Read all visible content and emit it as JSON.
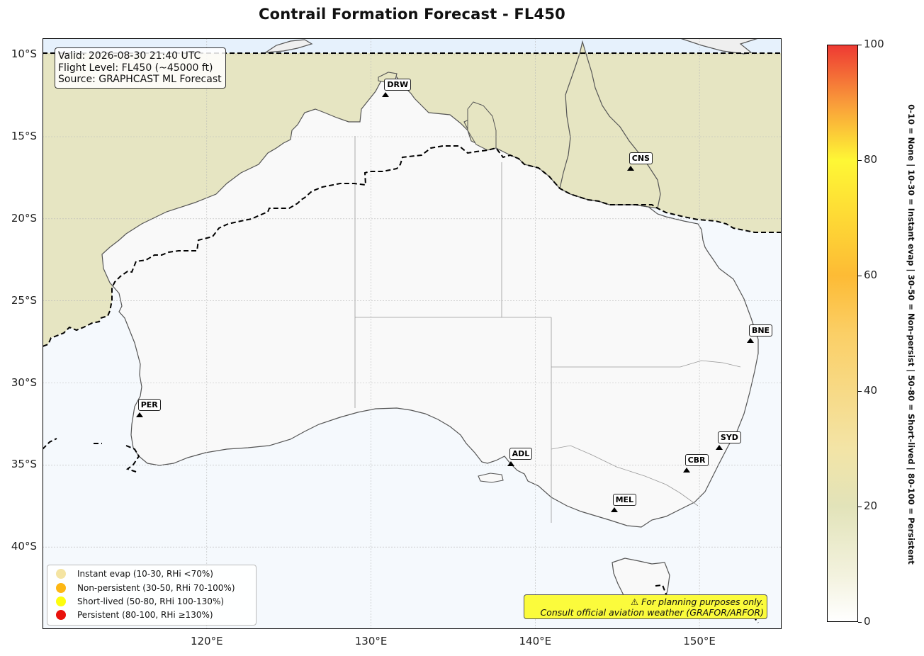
{
  "title": "Contrail Formation Forecast - FL450",
  "info": {
    "valid": "Valid: 2026-08-30 21:40 UTC",
    "flight_level": "Flight Level: FL450 (~45000 ft)",
    "source": "Source: GRAPHCAST ML Forecast"
  },
  "axes": {
    "lat_ticks": [
      {
        "value": -10,
        "label": "10°S"
      },
      {
        "value": -15,
        "label": "15°S"
      },
      {
        "value": -20,
        "label": "20°S"
      },
      {
        "value": -25,
        "label": "25°S"
      },
      {
        "value": -30,
        "label": "30°S"
      },
      {
        "value": -35,
        "label": "35°S"
      },
      {
        "value": -40,
        "label": "40°S"
      }
    ],
    "lon_ticks": [
      {
        "value": 120,
        "label": "120°E"
      },
      {
        "value": 130,
        "label": "130°E"
      },
      {
        "value": 140,
        "label": "140°E"
      },
      {
        "value": 150,
        "label": "150°E"
      }
    ],
    "extent": {
      "lon_min": 110,
      "lon_max": 155,
      "lat_min": -45,
      "lat_max": -9
    }
  },
  "airports": [
    {
      "code": "DRW",
      "lon": 130.9,
      "lat": -12.4
    },
    {
      "code": "CNS",
      "lon": 145.8,
      "lat": -16.9
    },
    {
      "code": "BNE",
      "lon": 153.1,
      "lat": -27.4
    },
    {
      "code": "PER",
      "lon": 115.9,
      "lat": -31.9
    },
    {
      "code": "SYD",
      "lon": 151.2,
      "lat": -33.9
    },
    {
      "code": "ADL",
      "lon": 138.5,
      "lat": -34.9
    },
    {
      "code": "CBR",
      "lon": 149.2,
      "lat": -35.3
    },
    {
      "code": "MEL",
      "lon": 144.8,
      "lat": -37.7
    }
  ],
  "legend": [
    {
      "label": "Instant evap (10-30, RHi <70%)",
      "color": "#f4e4a2"
    },
    {
      "label": "Non-persistent (30-50, RHi 70-100%)",
      "color": "#fdb714"
    },
    {
      "label": "Short-lived (50-80, RHi 100-130%)",
      "color": "#fdfd0f"
    },
    {
      "label": "Persistent (80-100, RHi ≥130%)",
      "color": "#e8120c"
    }
  ],
  "disclaimer": {
    "line1": "⚠ For planning purposes only.",
    "line2": "Consult official aviation weather (GRAFOR/ARFOR)"
  },
  "colorbar": {
    "ticks": [
      {
        "value": 0,
        "label": "0"
      },
      {
        "value": 20,
        "label": "20"
      },
      {
        "value": 40,
        "label": "40"
      },
      {
        "value": 60,
        "label": "60"
      },
      {
        "value": 80,
        "label": "80"
      },
      {
        "value": 100,
        "label": "100"
      }
    ],
    "caption": "0-10 = None  |  10-30 = Instant evap  |  30-50 = Non-persist  |  50-80 = Short-lived  |  80-100 = Persistent",
    "colors": {
      "low": "#ffffff",
      "mid_low": "#e2e3b9",
      "mid": "#fdbb35",
      "high_mid": "#fef735",
      "high": "#ee3a33"
    }
  },
  "map_colors": {
    "ocean": "#f5f9fd",
    "north_ocean_band": "#e6f1fc",
    "risk_zone": "#e6e5c2",
    "land": "#f9f9f9",
    "coastline": "#555555",
    "contour": "#000000"
  }
}
